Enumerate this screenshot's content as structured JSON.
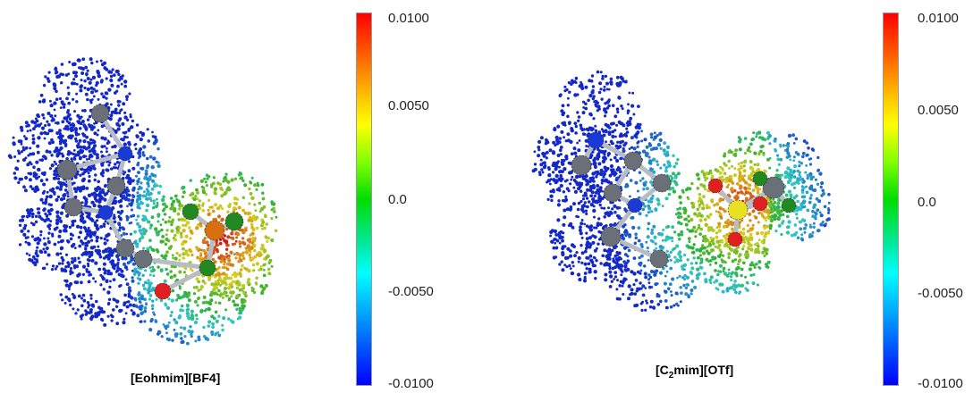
{
  "figure": {
    "panels": [
      {
        "caption": "[Eohmim][BF4]",
        "colorbar": {
          "max": "0.0100",
          "upper": "0.0050",
          "mid": "0.0",
          "lower": "-0.0050",
          "min": "-0.0100"
        }
      },
      {
        "caption_prefix": "[C",
        "caption_sub": "2",
        "caption_suffix": "mim][OTf]",
        "colorbar": {
          "max": "0.0100",
          "upper": "0.0050",
          "mid": "0.0",
          "lower": "-0.0050",
          "min": "-0.0100"
        }
      }
    ],
    "colors": {
      "blue": "#1428c8",
      "cyan": "#30c8c8",
      "green": "#30b030",
      "yellow": "#d8d020",
      "red": "#d01818",
      "atom_gray": "#6a6f78",
      "atom_blue": "#1a3ad8",
      "atom_green": "#228822",
      "atom_orange": "#d87010",
      "atom_red": "#e02020",
      "atom_yellow": "#e8e020"
    }
  }
}
